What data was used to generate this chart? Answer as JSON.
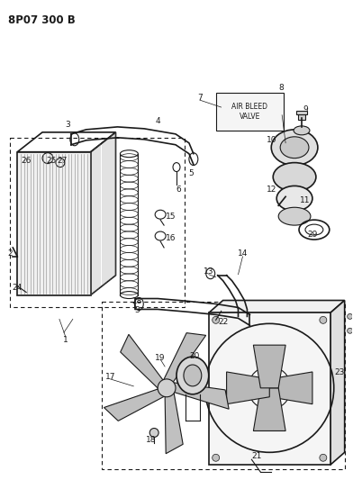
{
  "title": "8P07 300 B",
  "bg_color": "#ffffff",
  "line_color": "#1a1a1a",
  "fig_width": 3.92,
  "fig_height": 5.33,
  "dpi": 100,
  "title_fontsize": 8.5,
  "label_fontsize": 6.5
}
